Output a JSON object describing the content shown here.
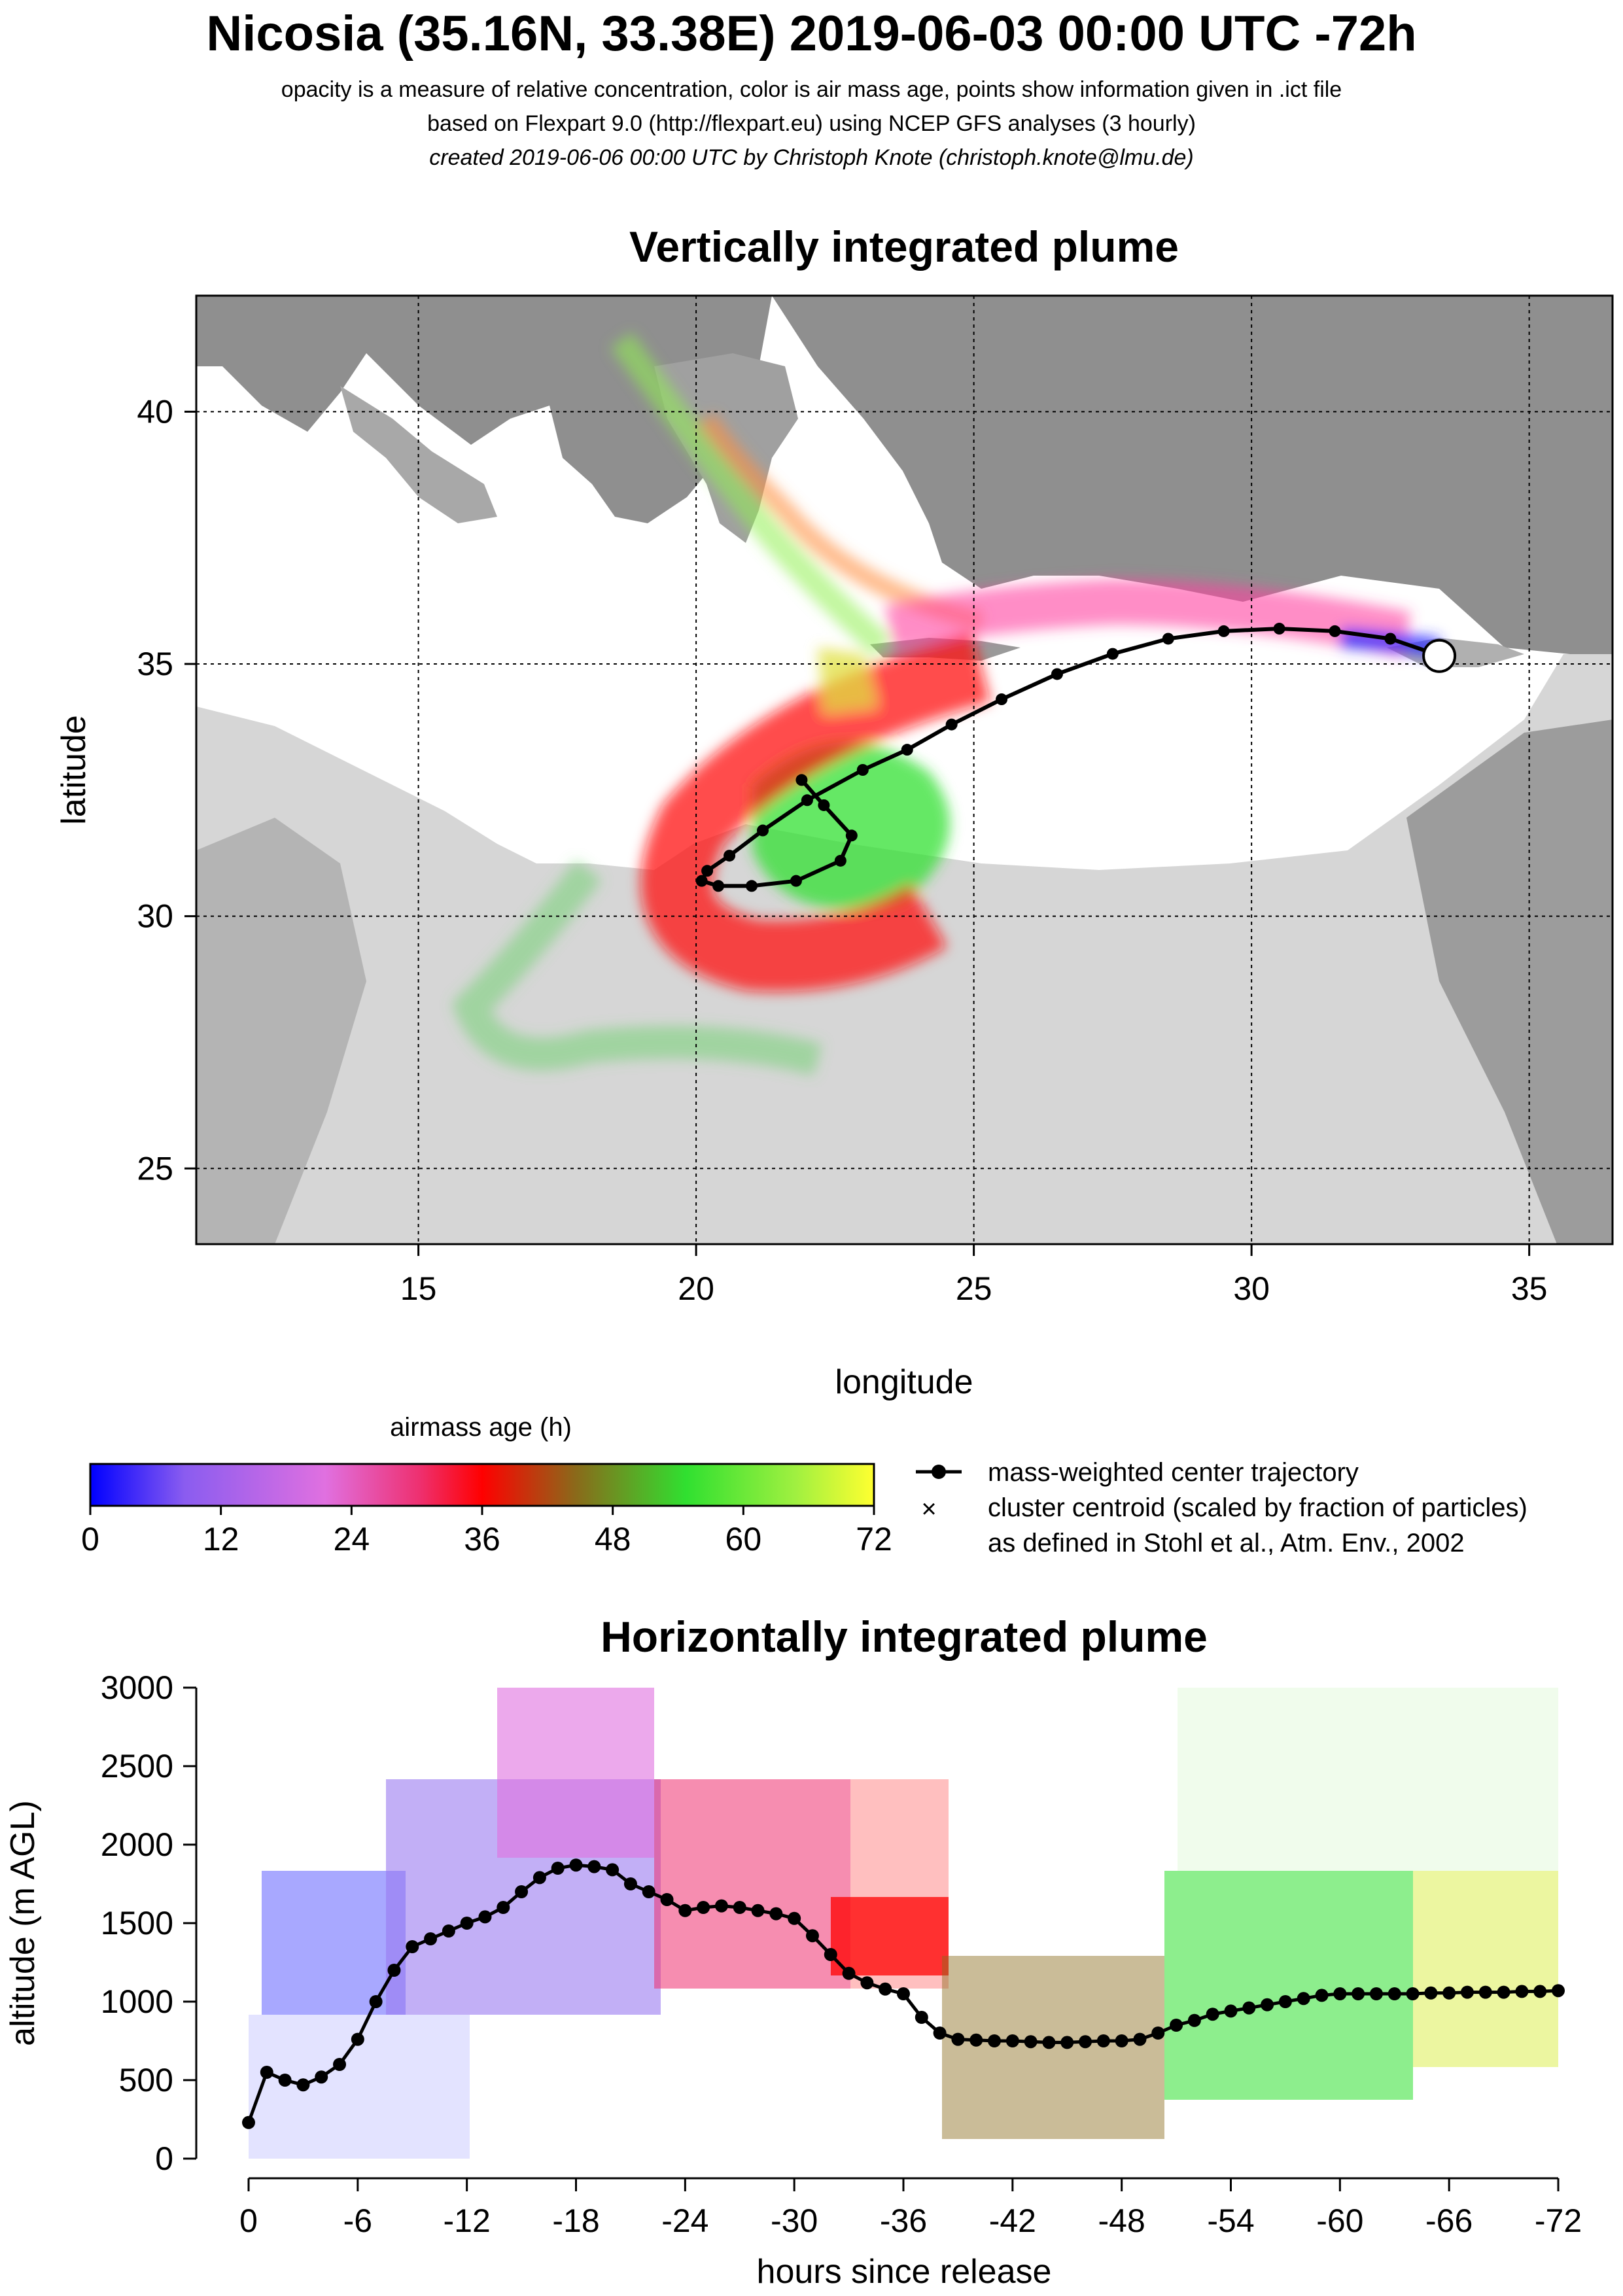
{
  "header": {
    "title": "Nicosia (35.16N, 33.38E) 2019-06-03 00:00 UTC -72h",
    "line1": "opacity is a measure of relative concentration, color is air mass age, points show information given in .ict file",
    "line2": "based on Flexpart 9.0 (http://flexpart.eu) using NCEP GFS analyses (3 hourly)",
    "line3": "created 2019-06-06 00:00 UTC by Christoph Knote (christoph.knote@lmu.de)"
  },
  "colors": {
    "sea": "#ffffff",
    "land_light": "#d9d9d9",
    "land_dark": "#9a9a9a",
    "age_scale": [
      "#0000ff",
      "#8a5cf0",
      "#e070e0",
      "#ee3070",
      "#ff0000",
      "#8a6a1a",
      "#30e030",
      "#a0f040",
      "#ffff30"
    ]
  },
  "chart_data": [
    {
      "type": "map",
      "title": "Vertically integrated plume",
      "xlabel": "longitude",
      "ylabel": "latitude",
      "xlim": [
        11,
        36.5
      ],
      "ylim": [
        23.5,
        42.3
      ],
      "xticks": [
        15,
        20,
        25,
        30,
        35
      ],
      "yticks": [
        25,
        30,
        35,
        40
      ],
      "grid": true,
      "release_site": {
        "name": "Nicosia",
        "lon": 33.38,
        "lat": 35.16
      },
      "center_trajectory": {
        "lon": [
          33.3,
          32.5,
          31.5,
          30.5,
          29.5,
          28.5,
          27.5,
          26.5,
          25.5,
          24.6,
          23.8,
          23.0,
          22.0,
          21.2,
          20.6,
          20.2,
          20.1,
          20.4,
          21.0,
          21.8,
          22.6,
          22.8,
          22.3,
          21.9
        ],
        "lat": [
          35.2,
          35.5,
          35.65,
          35.7,
          35.65,
          35.5,
          35.2,
          34.8,
          34.3,
          33.8,
          33.3,
          32.9,
          32.3,
          31.7,
          31.2,
          30.9,
          30.7,
          30.6,
          30.6,
          30.7,
          31.1,
          31.6,
          32.2,
          32.7
        ]
      },
      "plume_age_bands": [
        {
          "age": 6,
          "lon": [
            33.3,
            32.0,
            30.5,
            29.0
          ],
          "lat": [
            35.2,
            35.55,
            35.7,
            35.65
          ]
        },
        {
          "age": 18,
          "lon": [
            29.0,
            27.5,
            26.0,
            24.0
          ],
          "lat": [
            35.65,
            35.6,
            35.5,
            35.7
          ]
        },
        {
          "age": 30,
          "lon": [
            27.5,
            25.5,
            23.0,
            21.0,
            19.5
          ],
          "lat": [
            35.3,
            34.6,
            33.4,
            32.0,
            30.5
          ]
        },
        {
          "age": 38,
          "lon": [
            19.5,
            20.5,
            22.0,
            23.5
          ],
          "lat": [
            30.2,
            29.6,
            29.5,
            30.0
          ]
        },
        {
          "age": 54,
          "lon": [
            21.5,
            22.5,
            23.5,
            24.5,
            25.0
          ],
          "lat": [
            31.0,
            32.0,
            32.5,
            32.0,
            30.5
          ]
        },
        {
          "age": 66,
          "lon": [
            22.5,
            22.0,
            20.0,
            18.0,
            17.0
          ],
          "lat": [
            34.5,
            36.5,
            38.5,
            40.5,
            42.0
          ]
        }
      ]
    },
    {
      "type": "colorbar",
      "title": "airmass age (h)",
      "range": [
        0,
        72
      ],
      "ticks": [
        0,
        12,
        24,
        36,
        48,
        60,
        72
      ]
    },
    {
      "type": "line",
      "title": "Horizontally integrated plume",
      "xlabel": "hours since release",
      "ylabel": "altitude (m AGL)",
      "xlim": [
        0,
        -72
      ],
      "ylim": [
        0,
        3000
      ],
      "xticks": [
        0,
        -6,
        -12,
        -18,
        -24,
        -30,
        -36,
        -42,
        -48,
        -54,
        -60,
        -66,
        -72
      ],
      "yticks": [
        0,
        500,
        1000,
        1500,
        2000,
        2500,
        3000
      ],
      "x": [
        0,
        -1,
        -2,
        -3,
        -4,
        -5,
        -6,
        -7,
        -8,
        -9,
        -10,
        -11,
        -12,
        -13,
        -14,
        -15,
        -16,
        -17,
        -18,
        -19,
        -20,
        -21,
        -22,
        -23,
        -24,
        -25,
        -26,
        -27,
        -28,
        -29,
        -30,
        -31,
        -32,
        -33,
        -34,
        -35,
        -36,
        -37,
        -38,
        -39,
        -40,
        -41,
        -42,
        -43,
        -44,
        -45,
        -46,
        -47,
        -48,
        -49,
        -50,
        -51,
        -52,
        -53,
        -54,
        -55,
        -56,
        -57,
        -58,
        -59,
        -60,
        -61,
        -62,
        -63,
        -64,
        -65,
        -66,
        -67,
        -68,
        -69,
        -70,
        -71,
        -72
      ],
      "series": [
        {
          "name": "mass-weighted center trajectory",
          "values": [
            230,
            550,
            500,
            470,
            520,
            600,
            760,
            1000,
            1200,
            1350,
            1400,
            1450,
            1500,
            1540,
            1600,
            1700,
            1790,
            1850,
            1870,
            1860,
            1840,
            1750,
            1700,
            1650,
            1580,
            1600,
            1610,
            1600,
            1580,
            1560,
            1530,
            1420,
            1300,
            1180,
            1120,
            1080,
            1050,
            900,
            800,
            760,
            755,
            750,
            750,
            745,
            740,
            740,
            745,
            750,
            750,
            760,
            800,
            850,
            880,
            920,
            940,
            960,
            980,
            1000,
            1020,
            1040,
            1050,
            1050,
            1050,
            1050,
            1050,
            1055,
            1055,
            1060,
            1060,
            1060,
            1065,
            1065,
            1070
          ]
        }
      ],
      "legend": {
        "placement": "right of colorbar",
        "entries": [
          "mass-weighted center trajectory",
          "cluster centroid (scaled by fraction of particles)",
          "as defined in Stohl et al., Atm. Env., 2002"
        ]
      }
    }
  ]
}
